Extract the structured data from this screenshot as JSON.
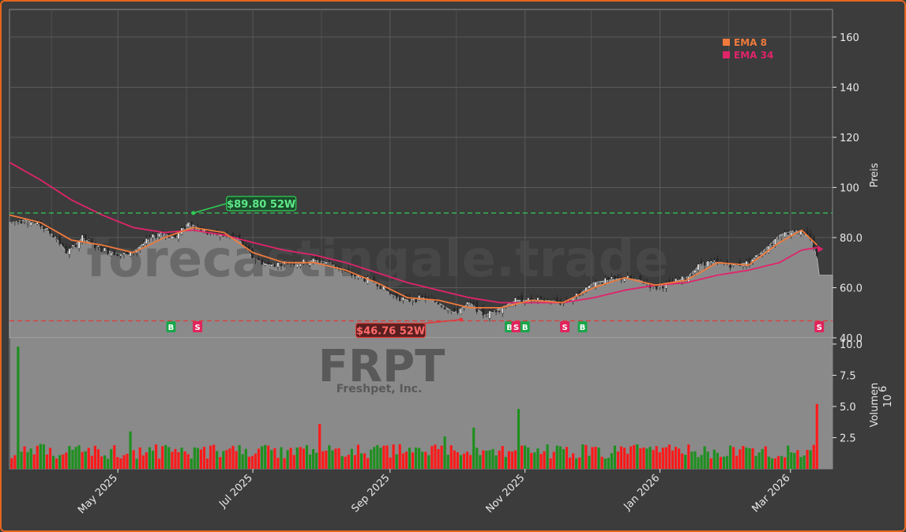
{
  "colors": {
    "background": "#3c3c3c",
    "border": "#e5661d",
    "price_area": "#8a8a8a",
    "ema8": "#f07a3c",
    "ema34": "#e0246a",
    "high_line": "#2ecc55",
    "low_line": "#e03a3a",
    "vol_up": "#1f8f1f",
    "vol_down": "#ff1a1a",
    "buy": "#1aa64a",
    "sell": "#e0245c"
  },
  "chart_data": [
    {
      "type": "line",
      "title": "",
      "ylabel": "Preis",
      "ylim": [
        40,
        171
      ],
      "yticks": [
        "40.0",
        "60.0",
        "80.0",
        "100",
        "120",
        "140",
        "160"
      ],
      "ytick_values": [
        40,
        60,
        80,
        100,
        120,
        140,
        160
      ],
      "xlim": [
        "2025-03-13",
        "2026-03-20"
      ],
      "xticks": [
        "May 2025",
        "Jul 2025",
        "Sep 2025",
        "Nov 2025",
        "Jan 2026",
        "Mar 2026"
      ],
      "xtick_dates": [
        "2025-05-01",
        "2025-07-01",
        "2025-09-01",
        "2025-11-01",
        "2026-01-01",
        "2026-03-01"
      ],
      "grid": true,
      "legend": "top-right",
      "series": [
        {
          "name": "EMA 8",
          "color": "#f07a3c"
        },
        {
          "name": "EMA 34",
          "color": "#e0246a"
        }
      ],
      "price_points": [
        [
          "2025-03-13",
          86
        ],
        [
          "2025-03-20",
          87
        ],
        [
          "2025-03-27",
          85
        ],
        [
          "2025-04-03",
          80
        ],
        [
          "2025-04-08",
          74
        ],
        [
          "2025-04-15",
          80
        ],
        [
          "2025-04-22",
          76
        ],
        [
          "2025-04-29",
          74
        ],
        [
          "2025-05-06",
          73
        ],
        [
          "2025-05-13",
          78
        ],
        [
          "2025-05-20",
          82
        ],
        [
          "2025-05-27",
          80
        ],
        [
          "2025-06-02",
          86
        ],
        [
          "2025-06-10",
          82
        ],
        [
          "2025-06-17",
          81
        ],
        [
          "2025-06-24",
          80
        ],
        [
          "2025-07-01",
          72
        ],
        [
          "2025-07-08",
          69
        ],
        [
          "2025-07-15",
          70
        ],
        [
          "2025-07-22",
          70
        ],
        [
          "2025-07-29",
          71
        ],
        [
          "2025-08-05",
          70
        ],
        [
          "2025-08-12",
          66
        ],
        [
          "2025-08-19",
          64
        ],
        [
          "2025-08-26",
          62
        ],
        [
          "2025-09-02",
          57
        ],
        [
          "2025-09-09",
          55
        ],
        [
          "2025-09-16",
          56
        ],
        [
          "2025-09-23",
          54
        ],
        [
          "2025-09-30",
          50
        ],
        [
          "2025-10-07",
          54
        ],
        [
          "2025-10-14",
          49
        ],
        [
          "2025-10-21",
          52
        ],
        [
          "2025-10-28",
          55
        ],
        [
          "2025-11-04",
          55
        ],
        [
          "2025-11-11",
          55
        ],
        [
          "2025-11-18",
          54
        ],
        [
          "2025-11-25",
          57
        ],
        [
          "2025-12-02",
          62
        ],
        [
          "2025-12-09",
          63
        ],
        [
          "2025-12-16",
          64
        ],
        [
          "2025-12-23",
          63
        ],
        [
          "2025-12-30",
          60
        ],
        [
          "2026-01-06",
          62
        ],
        [
          "2026-01-13",
          64
        ],
        [
          "2026-01-20",
          70
        ],
        [
          "2026-01-27",
          70
        ],
        [
          "2026-02-03",
          69
        ],
        [
          "2026-02-10",
          70
        ],
        [
          "2026-02-17",
          75
        ],
        [
          "2026-02-24",
          81
        ],
        [
          "2026-03-03",
          83
        ],
        [
          "2026-03-10",
          80
        ],
        [
          "2026-03-13",
          72
        ],
        [
          "2026-03-14",
          65
        ],
        [
          "2026-03-20",
          65
        ]
      ],
      "ema8_points": [
        [
          "2025-03-13",
          89
        ],
        [
          "2025-03-27",
          86
        ],
        [
          "2025-04-10",
          79
        ],
        [
          "2025-04-24",
          77
        ],
        [
          "2025-05-08",
          74
        ],
        [
          "2025-05-22",
          80
        ],
        [
          "2025-06-04",
          84
        ],
        [
          "2025-06-18",
          82
        ],
        [
          "2025-07-01",
          74
        ],
        [
          "2025-07-15",
          70
        ],
        [
          "2025-07-29",
          70
        ],
        [
          "2025-08-12",
          67
        ],
        [
          "2025-08-26",
          62
        ],
        [
          "2025-09-09",
          56
        ],
        [
          "2025-09-23",
          55
        ],
        [
          "2025-10-07",
          52
        ],
        [
          "2025-10-21",
          52
        ],
        [
          "2025-11-04",
          55
        ],
        [
          "2025-11-18",
          54
        ],
        [
          "2025-12-02",
          60
        ],
        [
          "2025-12-16",
          64
        ],
        [
          "2025-12-30",
          61
        ],
        [
          "2026-01-13",
          63
        ],
        [
          "2026-01-27",
          70
        ],
        [
          "2026-02-10",
          69
        ],
        [
          "2026-02-24",
          78
        ],
        [
          "2026-03-06",
          83
        ],
        [
          "2026-03-13",
          77
        ]
      ],
      "ema34_points": [
        [
          "2025-03-13",
          110
        ],
        [
          "2025-03-27",
          103
        ],
        [
          "2025-04-10",
          95
        ],
        [
          "2025-04-24",
          89
        ],
        [
          "2025-05-08",
          84
        ],
        [
          "2025-05-22",
          82
        ],
        [
          "2025-06-04",
          83
        ],
        [
          "2025-06-18",
          81
        ],
        [
          "2025-07-01",
          78
        ],
        [
          "2025-07-15",
          75
        ],
        [
          "2025-07-29",
          73
        ],
        [
          "2025-08-12",
          70
        ],
        [
          "2025-08-26",
          66
        ],
        [
          "2025-09-09",
          62
        ],
        [
          "2025-09-23",
          59
        ],
        [
          "2025-10-07",
          56
        ],
        [
          "2025-10-21",
          54
        ],
        [
          "2025-11-04",
          54
        ],
        [
          "2025-11-18",
          54
        ],
        [
          "2025-12-02",
          56
        ],
        [
          "2025-12-16",
          59
        ],
        [
          "2025-12-30",
          61
        ],
        [
          "2026-01-13",
          62
        ],
        [
          "2026-01-27",
          65
        ],
        [
          "2026-02-10",
          67
        ],
        [
          "2026-02-24",
          70
        ],
        [
          "2026-03-06",
          75
        ],
        [
          "2026-03-13",
          76
        ]
      ],
      "hlines": [
        {
          "label": "$89.80 52W",
          "value": 89.8,
          "kind": "high",
          "date": "2025-06-03"
        },
        {
          "label": "$46.76 52W",
          "value": 46.76,
          "kind": "low",
          "date": "2025-10-02"
        }
      ],
      "signals": [
        {
          "label": "B",
          "date": "2025-05-25"
        },
        {
          "label": "S",
          "date": "2025-06-06"
        },
        {
          "label": "B",
          "date": "2025-10-25"
        },
        {
          "label": "S",
          "date": "2025-10-28"
        },
        {
          "label": "B",
          "date": "2025-11-01"
        },
        {
          "label": "S",
          "date": "2025-11-19"
        },
        {
          "label": "B",
          "date": "2025-11-27"
        },
        {
          "label": "S",
          "date": "2026-03-14"
        }
      ]
    },
    {
      "type": "bar",
      "ylabel": "Volumen",
      "ylabel_unit": "10^6",
      "ylim": [
        0,
        10.5
      ],
      "yticks": [
        "2.5",
        "5.0",
        "7.5",
        "10.0"
      ],
      "ytick_values": [
        2.5,
        5.0,
        7.5,
        10.0
      ],
      "volume_spikes": [
        {
          "date": "2025-03-17",
          "value": 9.8,
          "up": true
        },
        {
          "date": "2025-05-08",
          "value": 3.0,
          "up": true
        },
        {
          "date": "2025-08-01",
          "value": 3.6,
          "up": false
        },
        {
          "date": "2025-09-27",
          "value": 2.6,
          "up": true
        },
        {
          "date": "2025-10-10",
          "value": 3.3,
          "up": true
        },
        {
          "date": "2025-10-30",
          "value": 4.8,
          "up": true
        },
        {
          "date": "2026-03-14",
          "value": 5.2,
          "up": false
        }
      ]
    }
  ],
  "watermark": {
    "text1": "forecastingale.trade",
    "ticker": "FRPT",
    "company": "Freshpet, Inc."
  },
  "legend": {
    "ema8": "EMA 8",
    "ema34": "EMA 34"
  },
  "axis": {
    "price_label": "Preis",
    "volume_label": "Volumen",
    "volume_unit": "10",
    "volume_exp": "6"
  }
}
